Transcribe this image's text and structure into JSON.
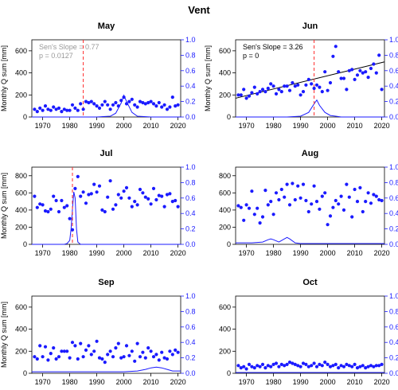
{
  "main_title": "Vent",
  "chart_data": [
    {
      "type": "scatter",
      "title": "May",
      "ylabel": "Monthly Q sum [mm]",
      "xlim": [
        1966,
        2021
      ],
      "ylim": [
        0,
        700
      ],
      "y2lim": [
        0,
        1
      ],
      "xticks": [
        1970,
        1980,
        1990,
        2000,
        2010,
        2020
      ],
      "yticks": [
        0,
        200,
        400,
        600
      ],
      "y2ticks": [
        "0.0",
        "0.2",
        "0.4",
        "0.6",
        "0.8",
        "1.0"
      ],
      "annotation_lines": [
        "Sen's Slope = 0.77",
        "p = 0.0127"
      ],
      "annotation_color": "#999999",
      "trend_line": null,
      "change_point": 1985,
      "x": [
        1967,
        1968,
        1969,
        1970,
        1971,
        1972,
        1973,
        1974,
        1975,
        1976,
        1977,
        1978,
        1979,
        1980,
        1981,
        1982,
        1983,
        1984,
        1985,
        1986,
        1987,
        1988,
        1989,
        1990,
        1991,
        1992,
        1993,
        1994,
        1995,
        1996,
        1997,
        1998,
        1999,
        2000,
        2001,
        2002,
        2003,
        2004,
        2005,
        2006,
        2007,
        2008,
        2009,
        2010,
        2011,
        2012,
        2013,
        2014,
        2015,
        2016,
        2017,
        2018,
        2019,
        2020
      ],
      "y": [
        70,
        50,
        80,
        60,
        100,
        70,
        60,
        90,
        70,
        80,
        50,
        70,
        60,
        60,
        110,
        80,
        60,
        120,
        70,
        140,
        130,
        140,
        120,
        100,
        80,
        110,
        140,
        110,
        70,
        110,
        130,
        100,
        150,
        180,
        120,
        140,
        160,
        110,
        90,
        140,
        130,
        120,
        130,
        140,
        120,
        100,
        130,
        90,
        110,
        70,
        90,
        180,
        100,
        110
      ],
      "prob_curve_x": [
        1966,
        1980,
        1990,
        1995,
        1997,
        1999,
        2000,
        2001,
        2003,
        2005,
        2010,
        2021
      ],
      "prob_curve_y": [
        0.0,
        0.0,
        0.0,
        0.01,
        0.05,
        0.18,
        0.28,
        0.2,
        0.06,
        0.01,
        0.0,
        0.0
      ]
    },
    {
      "type": "scatter",
      "title": "Jun",
      "ylabel": "Monthly Q sum [mm]",
      "xlim": [
        1966,
        2021
      ],
      "ylim": [
        0,
        700
      ],
      "y2lim": [
        0,
        1
      ],
      "xticks": [
        1970,
        1980,
        1990,
        2000,
        2010,
        2020
      ],
      "yticks": [
        0,
        200,
        400,
        600
      ],
      "y2ticks": [
        "0.0",
        "0.2",
        "0.4",
        "0.6",
        "0.8",
        "1.0"
      ],
      "annotation_lines": [
        "Sen's Slope = 3.26",
        "p = 0"
      ],
      "annotation_color": "#000000",
      "trend_line": [
        [
          1966,
          170
        ],
        [
          2021,
          500
        ]
      ],
      "change_point": 1995,
      "x": [
        1967,
        1968,
        1969,
        1970,
        1971,
        1972,
        1973,
        1974,
        1975,
        1976,
        1977,
        1978,
        1979,
        1980,
        1981,
        1982,
        1983,
        1984,
        1985,
        1986,
        1987,
        1988,
        1989,
        1990,
        1991,
        1992,
        1993,
        1994,
        1995,
        1996,
        1997,
        1998,
        1999,
        2000,
        2001,
        2002,
        2003,
        2004,
        2005,
        2006,
        2007,
        2008,
        2009,
        2010,
        2011,
        2012,
        2013,
        2014,
        2015,
        2016,
        2017,
        2018,
        2019,
        2020
      ],
      "y": [
        200,
        200,
        250,
        170,
        190,
        220,
        270,
        210,
        230,
        250,
        230,
        260,
        300,
        280,
        210,
        250,
        230,
        280,
        280,
        240,
        310,
        280,
        290,
        200,
        230,
        290,
        340,
        300,
        260,
        290,
        270,
        230,
        410,
        240,
        310,
        550,
        640,
        410,
        350,
        350,
        250,
        420,
        430,
        340,
        380,
        420,
        400,
        410,
        360,
        440,
        480,
        400,
        560,
        250
      ],
      "prob_curve_x": [
        1966,
        1985,
        1990,
        1993,
        1995,
        1996,
        1997,
        1999,
        2001,
        2003,
        2005,
        2010,
        2021
      ],
      "prob_curve_y": [
        0.0,
        0.0,
        0.01,
        0.06,
        0.17,
        0.22,
        0.15,
        0.06,
        0.02,
        0.01,
        0.0,
        0.0,
        0.0
      ]
    },
    {
      "type": "scatter",
      "title": "Jul",
      "ylabel": "Monthly Q sum [mm]",
      "xlim": [
        1966,
        2021
      ],
      "ylim": [
        0,
        900
      ],
      "y2lim": [
        0,
        1
      ],
      "xticks": [
        1970,
        1980,
        1990,
        2000,
        2010,
        2020
      ],
      "yticks": [
        0,
        200,
        400,
        600,
        800
      ],
      "y2ticks": [
        "0.0",
        "0.2",
        "0.4",
        "0.6",
        "0.8",
        "1.0"
      ],
      "annotation_lines": [],
      "annotation_color": "#000000",
      "trend_line": null,
      "change_point": 1981,
      "x": [
        1967,
        1968,
        1969,
        1970,
        1971,
        1972,
        1973,
        1974,
        1975,
        1976,
        1977,
        1978,
        1979,
        1980,
        1981,
        1982,
        1983,
        1984,
        1985,
        1986,
        1987,
        1988,
        1989,
        1990,
        1991,
        1992,
        1993,
        1994,
        1995,
        1996,
        1997,
        1998,
        1999,
        2000,
        2001,
        2002,
        2003,
        2004,
        2005,
        2006,
        2007,
        2008,
        2009,
        2010,
        2011,
        2012,
        2013,
        2014,
        2015,
        2016,
        2017,
        2018,
        2019,
        2020
      ],
      "y": [
        560,
        430,
        470,
        460,
        390,
        380,
        410,
        560,
        510,
        380,
        510,
        430,
        450,
        300,
        170,
        650,
        790,
        560,
        610,
        480,
        580,
        590,
        700,
        610,
        680,
        400,
        380,
        550,
        740,
        410,
        460,
        580,
        540,
        620,
        660,
        540,
        440,
        500,
        460,
        640,
        600,
        550,
        530,
        470,
        650,
        520,
        570,
        560,
        440,
        580,
        590,
        500,
        510,
        440
      ],
      "prob_curve_x": [
        1966,
        1978,
        1979,
        1980,
        1980.5,
        1981,
        1981.5,
        1982,
        1982.5,
        1983,
        1984,
        2021
      ],
      "prob_curve_y": [
        0.0,
        0.0,
        0.01,
        0.05,
        0.2,
        0.45,
        0.68,
        0.6,
        0.2,
        0.03,
        0.0,
        0.0
      ]
    },
    {
      "type": "scatter",
      "title": "Aug",
      "ylabel": "",
      "xlim": [
        1966,
        2021
      ],
      "ylim": [
        0,
        900
      ],
      "y2lim": [
        0,
        1
      ],
      "xticks": [
        1970,
        1980,
        1990,
        2000,
        2010,
        2020
      ],
      "yticks": [
        0,
        200,
        400,
        600,
        800
      ],
      "y2ticks": [
        "0.0",
        "0.2",
        "0.4",
        "0.6",
        "0.8",
        "1.0"
      ],
      "annotation_lines": [],
      "annotation_color": "#000000",
      "trend_line": null,
      "change_point": null,
      "x": [
        1967,
        1968,
        1969,
        1970,
        1971,
        1972,
        1973,
        1974,
        1975,
        1976,
        1977,
        1978,
        1979,
        1980,
        1981,
        1982,
        1983,
        1984,
        1985,
        1986,
        1987,
        1988,
        1989,
        1990,
        1991,
        1992,
        1993,
        1994,
        1995,
        1996,
        1997,
        1998,
        1999,
        2000,
        2001,
        2002,
        2003,
        2004,
        2005,
        2006,
        2007,
        2008,
        2009,
        2010,
        2011,
        2012,
        2013,
        2014,
        2015,
        2016,
        2017,
        2018,
        2019,
        2020
      ],
      "y": [
        450,
        430,
        280,
        460,
        420,
        620,
        350,
        420,
        250,
        320,
        630,
        460,
        500,
        350,
        600,
        520,
        640,
        550,
        700,
        460,
        710,
        520,
        680,
        540,
        700,
        510,
        380,
        470,
        680,
        500,
        410,
        560,
        600,
        230,
        330,
        430,
        510,
        470,
        560,
        400,
        700,
        550,
        320,
        640,
        500,
        660,
        380,
        500,
        600,
        480,
        580,
        560,
        520,
        510
      ],
      "prob_curve_x": [
        1966,
        1972,
        1976,
        1978,
        1979,
        1980,
        1982,
        1984,
        1985,
        1986,
        1988,
        1990,
        2000,
        2021
      ],
      "prob_curve_y": [
        0.02,
        0.02,
        0.03,
        0.06,
        0.07,
        0.06,
        0.03,
        0.07,
        0.09,
        0.07,
        0.02,
        0.01,
        0.01,
        0.01
      ]
    },
    {
      "type": "scatter",
      "title": "Sep",
      "ylabel": "Monthly Q sum [mm]",
      "xlim": [
        1966,
        2021
      ],
      "ylim": [
        0,
        700
      ],
      "y2lim": [
        0,
        1
      ],
      "xticks": [
        1970,
        1980,
        1990,
        2000,
        2010,
        2020
      ],
      "yticks": [
        0,
        200,
        400,
        600
      ],
      "y2ticks": [
        "0.0",
        "0.2",
        "0.4",
        "0.6",
        "0.8",
        "1.0"
      ],
      "annotation_lines": [],
      "annotation_color": "#000000",
      "trend_line": null,
      "change_point": null,
      "x": [
        1967,
        1968,
        1969,
        1970,
        1971,
        1972,
        1973,
        1974,
        1975,
        1976,
        1977,
        1978,
        1979,
        1980,
        1981,
        1982,
        1983,
        1984,
        1985,
        1986,
        1987,
        1988,
        1989,
        1990,
        1991,
        1992,
        1993,
        1994,
        1995,
        1996,
        1997,
        1998,
        1999,
        2000,
        2001,
        2002,
        2003,
        2004,
        2005,
        2006,
        2007,
        2008,
        2009,
        2010,
        2011,
        2012,
        2013,
        2014,
        2015,
        2016,
        2017,
        2018,
        2019,
        2020
      ],
      "y": [
        150,
        130,
        250,
        150,
        240,
        120,
        180,
        230,
        130,
        150,
        200,
        200,
        200,
        140,
        280,
        250,
        130,
        270,
        150,
        210,
        250,
        170,
        200,
        290,
        140,
        130,
        100,
        170,
        200,
        150,
        230,
        270,
        140,
        150,
        250,
        160,
        200,
        110,
        270,
        150,
        190,
        140,
        230,
        200,
        150,
        170,
        120,
        190,
        140,
        130,
        200,
        170,
        210,
        190
      ],
      "prob_curve_x": [
        1966,
        1990,
        2000,
        2005,
        2008,
        2010,
        2012,
        2014,
        2016,
        2018,
        2021
      ],
      "prob_curve_y": [
        0.02,
        0.02,
        0.02,
        0.03,
        0.05,
        0.07,
        0.08,
        0.07,
        0.05,
        0.03,
        0.03
      ]
    },
    {
      "type": "scatter",
      "title": "Oct",
      "ylabel": "",
      "xlim": [
        1966,
        2021
      ],
      "ylim": [
        0,
        700
      ],
      "y2lim": [
        0,
        1
      ],
      "xticks": [
        1970,
        1980,
        1990,
        2000,
        2010,
        2020
      ],
      "yticks": [
        0,
        200,
        400,
        600
      ],
      "y2ticks": [
        "0.0",
        "0.2",
        "0.4",
        "0.6",
        "0.8",
        "1.0"
      ],
      "annotation_lines": [],
      "annotation_color": "#000000",
      "trend_line": null,
      "change_point": null,
      "x": [
        1967,
        1968,
        1969,
        1970,
        1971,
        1972,
        1973,
        1974,
        1975,
        1976,
        1977,
        1978,
        1979,
        1980,
        1981,
        1982,
        1983,
        1984,
        1985,
        1986,
        1987,
        1988,
        1989,
        1990,
        1991,
        1992,
        1993,
        1994,
        1995,
        1996,
        1997,
        1998,
        1999,
        2000,
        2001,
        2002,
        2003,
        2004,
        2005,
        2006,
        2007,
        2008,
        2009,
        2010,
        2011,
        2012,
        2013,
        2014,
        2015,
        2016,
        2017,
        2018,
        2019,
        2020
      ],
      "y": [
        70,
        50,
        60,
        40,
        80,
        60,
        50,
        70,
        60,
        80,
        50,
        70,
        60,
        80,
        90,
        60,
        80,
        70,
        80,
        100,
        90,
        80,
        70,
        60,
        90,
        80,
        60,
        70,
        90,
        60,
        80,
        70,
        100,
        80,
        60,
        70,
        80,
        50,
        70,
        60,
        80,
        70,
        60,
        80,
        50,
        60,
        70,
        50,
        60,
        70,
        60,
        70,
        70,
        80
      ],
      "prob_curve_x": [
        1966,
        2021
      ],
      "prob_curve_y": [
        0.01,
        0.01
      ]
    }
  ]
}
